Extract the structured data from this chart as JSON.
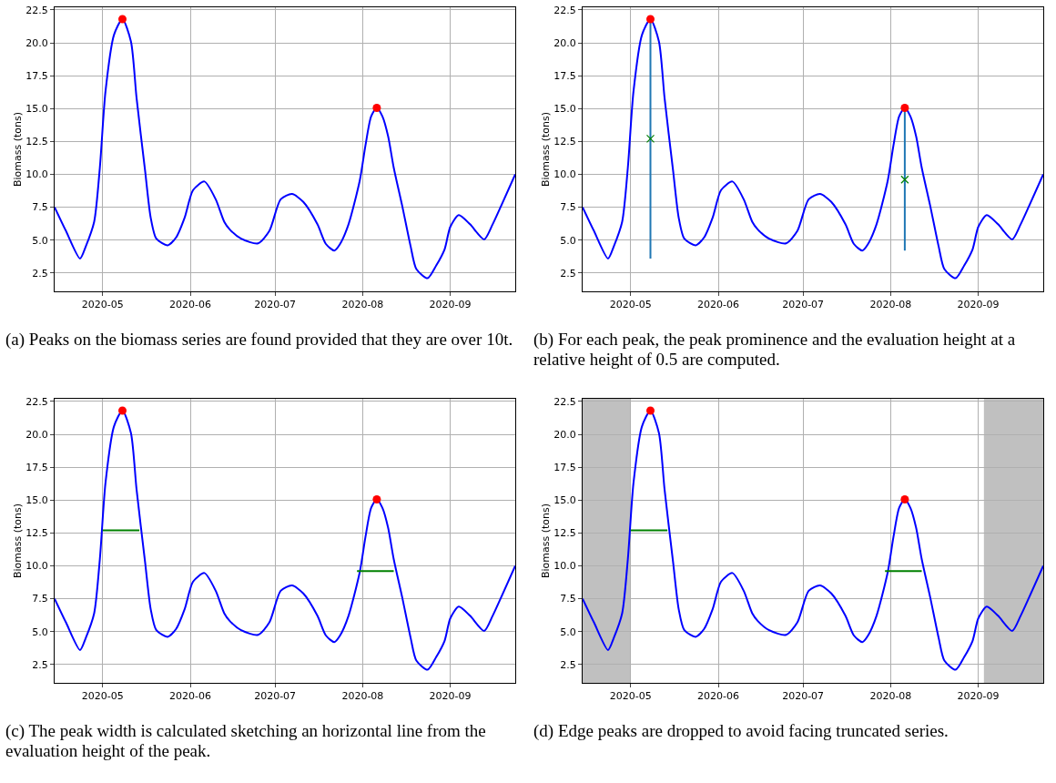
{
  "chart_data": [
    {
      "type": "line",
      "ylabel": "Biomass (tons)",
      "xlim": [
        "2020-04-14",
        "2020-09-24"
      ],
      "ylim": [
        1.1,
        22.7
      ],
      "xticks": [
        {
          "value": "2020-05-01",
          "label": "2020-05"
        },
        {
          "value": "2020-06-01",
          "label": "2020-06"
        },
        {
          "value": "2020-07-01",
          "label": "2020-07"
        },
        {
          "value": "2020-08-01",
          "label": "2020-08"
        },
        {
          "value": "2020-09-01",
          "label": "2020-09"
        }
      ],
      "yticks": [
        {
          "value": 2.5,
          "label": "2.5"
        },
        {
          "value": 5,
          "label": "5.0"
        },
        {
          "value": 7.5,
          "label": "7.5"
        },
        {
          "value": 10,
          "label": "10.0"
        },
        {
          "value": 12.5,
          "label": "12.5"
        },
        {
          "value": 15,
          "label": "15.0"
        },
        {
          "value": 17.5,
          "label": "17.5"
        },
        {
          "value": 20,
          "label": "20.0"
        },
        {
          "value": 22.5,
          "label": "22.5"
        }
      ],
      "grid": true,
      "annotations": [
        "(a) Peaks on the biomass series are found provided that they are over 10t."
      ],
      "series": [
        {
          "type": "line",
          "color": "#0000ff",
          "x": [
            "2020-04-14",
            "2020-04-18",
            "2020-04-23",
            "2020-04-25",
            "2020-04-28",
            "2020-04-30",
            "2020-05-02",
            "2020-05-05",
            "2020-05-08",
            "2020-05-11",
            "2020-05-13",
            "2020-05-16",
            "2020-05-18",
            "2020-05-20",
            "2020-05-24",
            "2020-05-27",
            "2020-05-30",
            "2020-06-02",
            "2020-06-06",
            "2020-06-10",
            "2020-06-13",
            "2020-06-15",
            "2020-06-19",
            "2020-06-25",
            "2020-06-29",
            "2020-07-03",
            "2020-07-07",
            "2020-07-11",
            "2020-07-16",
            "2020-07-19",
            "2020-07-22",
            "2020-07-24",
            "2020-07-27",
            "2020-07-31",
            "2020-08-02",
            "2020-08-04",
            "2020-08-06",
            "2020-08-08",
            "2020-08-10",
            "2020-08-12",
            "2020-08-15",
            "2020-08-18",
            "2020-08-20",
            "2020-08-24",
            "2020-08-27",
            "2020-08-30",
            "2020-09-01",
            "2020-09-04",
            "2020-09-08",
            "2020-09-13",
            "2020-09-16",
            "2020-09-19",
            "2020-09-24"
          ],
          "values": [
            7.5,
            5.7,
            3.6,
            4.5,
            6.4,
            10.5,
            16.3,
            20.6,
            21.8,
            20.1,
            15.8,
            10.3,
            6.7,
            5.1,
            4.6,
            5.2,
            6.7,
            8.8,
            9.45,
            8.1,
            6.4,
            5.8,
            5.1,
            4.75,
            5.7,
            8.1,
            8.5,
            7.9,
            6.2,
            4.7,
            4.2,
            4.7,
            6.2,
            9.55,
            12.2,
            14.4,
            15.05,
            14.4,
            12.9,
            10.5,
            7.6,
            4.5,
            2.8,
            2.1,
            3.05,
            4.3,
            6.0,
            6.9,
            6.2,
            5.05,
            6.2,
            7.6,
            10.0
          ]
        },
        {
          "type": "scatter",
          "color": "#ff0000",
          "marker": "circle",
          "x": [
            "2020-05-08",
            "2020-08-06"
          ],
          "values": [
            21.8,
            15.05
          ]
        }
      ]
    },
    {
      "type": "line",
      "ylabel": "Biomass (tons)",
      "xlim": [
        "2020-04-14",
        "2020-09-24"
      ],
      "ylim": [
        1.1,
        22.7
      ],
      "xticks": [
        {
          "value": "2020-05-01",
          "label": "2020-05"
        },
        {
          "value": "2020-06-01",
          "label": "2020-06"
        },
        {
          "value": "2020-07-01",
          "label": "2020-07"
        },
        {
          "value": "2020-08-01",
          "label": "2020-08"
        },
        {
          "value": "2020-09-01",
          "label": "2020-09"
        }
      ],
      "yticks": [
        {
          "value": 2.5,
          "label": "2.5"
        },
        {
          "value": 5,
          "label": "5.0"
        },
        {
          "value": 7.5,
          "label": "7.5"
        },
        {
          "value": 10,
          "label": "10.0"
        },
        {
          "value": 12.5,
          "label": "12.5"
        },
        {
          "value": 15,
          "label": "15.0"
        },
        {
          "value": 17.5,
          "label": "17.5"
        },
        {
          "value": 20,
          "label": "20.0"
        },
        {
          "value": 22.5,
          "label": "22.5"
        }
      ],
      "grid": true,
      "annotations": [
        "(b) For each peak, the peak prominence and the evaluation height at a relative height of 0.5 are computed."
      ],
      "series": [
        {
          "type": "line",
          "color": "#0000ff",
          "x": [
            "2020-04-14",
            "2020-04-18",
            "2020-04-23",
            "2020-04-25",
            "2020-04-28",
            "2020-04-30",
            "2020-05-02",
            "2020-05-05",
            "2020-05-08",
            "2020-05-11",
            "2020-05-13",
            "2020-05-16",
            "2020-05-18",
            "2020-05-20",
            "2020-05-24",
            "2020-05-27",
            "2020-05-30",
            "2020-06-02",
            "2020-06-06",
            "2020-06-10",
            "2020-06-13",
            "2020-06-15",
            "2020-06-19",
            "2020-06-25",
            "2020-06-29",
            "2020-07-03",
            "2020-07-07",
            "2020-07-11",
            "2020-07-16",
            "2020-07-19",
            "2020-07-22",
            "2020-07-24",
            "2020-07-27",
            "2020-07-31",
            "2020-08-02",
            "2020-08-04",
            "2020-08-06",
            "2020-08-08",
            "2020-08-10",
            "2020-08-12",
            "2020-08-15",
            "2020-08-18",
            "2020-08-20",
            "2020-08-24",
            "2020-08-27",
            "2020-08-30",
            "2020-09-01",
            "2020-09-04",
            "2020-09-08",
            "2020-09-13",
            "2020-09-16",
            "2020-09-19",
            "2020-09-24"
          ],
          "values": [
            7.5,
            5.7,
            3.6,
            4.5,
            6.4,
            10.5,
            16.3,
            20.6,
            21.8,
            20.1,
            15.8,
            10.3,
            6.7,
            5.1,
            4.6,
            5.2,
            6.7,
            8.8,
            9.45,
            8.1,
            6.4,
            5.8,
            5.1,
            4.75,
            5.7,
            8.1,
            8.5,
            7.9,
            6.2,
            4.7,
            4.2,
            4.7,
            6.2,
            9.55,
            12.2,
            14.4,
            15.05,
            14.4,
            12.9,
            10.5,
            7.6,
            4.5,
            2.8,
            2.1,
            3.05,
            4.3,
            6.0,
            6.9,
            6.2,
            5.05,
            6.2,
            7.6,
            10.0
          ]
        },
        {
          "type": "line",
          "color": "#1f77b4",
          "x": [
            "2020-05-08",
            "2020-05-08"
          ],
          "values": [
            3.6,
            21.8
          ]
        },
        {
          "type": "line",
          "color": "#1f77b4",
          "x": [
            "2020-08-06",
            "2020-08-06"
          ],
          "values": [
            4.2,
            15.05
          ]
        },
        {
          "type": "scatter",
          "color": "#ff0000",
          "marker": "circle",
          "x": [
            "2020-05-08",
            "2020-08-06"
          ],
          "values": [
            21.8,
            15.05
          ]
        },
        {
          "type": "scatter",
          "color": "#008000",
          "marker": "cross",
          "x": [
            "2020-05-08",
            "2020-08-06"
          ],
          "values": [
            12.7,
            9.6
          ]
        }
      ]
    },
    {
      "type": "line",
      "ylabel": "Biomass (tons)",
      "xlim": [
        "2020-04-14",
        "2020-09-24"
      ],
      "ylim": [
        1.1,
        22.7
      ],
      "xticks": [
        {
          "value": "2020-05-01",
          "label": "2020-05"
        },
        {
          "value": "2020-06-01",
          "label": "2020-06"
        },
        {
          "value": "2020-07-01",
          "label": "2020-07"
        },
        {
          "value": "2020-08-01",
          "label": "2020-08"
        },
        {
          "value": "2020-09-01",
          "label": "2020-09"
        }
      ],
      "yticks": [
        {
          "value": 2.5,
          "label": "2.5"
        },
        {
          "value": 5,
          "label": "5.0"
        },
        {
          "value": 7.5,
          "label": "7.5"
        },
        {
          "value": 10,
          "label": "10.0"
        },
        {
          "value": 12.5,
          "label": "12.5"
        },
        {
          "value": 15,
          "label": "15.0"
        },
        {
          "value": 17.5,
          "label": "17.5"
        },
        {
          "value": 20,
          "label": "20.0"
        },
        {
          "value": 22.5,
          "label": "22.5"
        }
      ],
      "grid": true,
      "annotations": [
        "(c) The peak width is calculated sketching an horizontal line from the evaluation height of the peak."
      ],
      "series": [
        {
          "type": "line",
          "color": "#0000ff",
          "x": [
            "2020-04-14",
            "2020-04-18",
            "2020-04-23",
            "2020-04-25",
            "2020-04-28",
            "2020-04-30",
            "2020-05-02",
            "2020-05-05",
            "2020-05-08",
            "2020-05-11",
            "2020-05-13",
            "2020-05-16",
            "2020-05-18",
            "2020-05-20",
            "2020-05-24",
            "2020-05-27",
            "2020-05-30",
            "2020-06-02",
            "2020-06-06",
            "2020-06-10",
            "2020-06-13",
            "2020-06-15",
            "2020-06-19",
            "2020-06-25",
            "2020-06-29",
            "2020-07-03",
            "2020-07-07",
            "2020-07-11",
            "2020-07-16",
            "2020-07-19",
            "2020-07-22",
            "2020-07-24",
            "2020-07-27",
            "2020-07-31",
            "2020-08-02",
            "2020-08-04",
            "2020-08-06",
            "2020-08-08",
            "2020-08-10",
            "2020-08-12",
            "2020-08-15",
            "2020-08-18",
            "2020-08-20",
            "2020-08-24",
            "2020-08-27",
            "2020-08-30",
            "2020-09-01",
            "2020-09-04",
            "2020-09-08",
            "2020-09-13",
            "2020-09-16",
            "2020-09-19",
            "2020-09-24"
          ],
          "values": [
            7.5,
            5.7,
            3.6,
            4.5,
            6.4,
            10.5,
            16.3,
            20.6,
            21.8,
            20.1,
            15.8,
            10.3,
            6.7,
            5.1,
            4.6,
            5.2,
            6.7,
            8.8,
            9.45,
            8.1,
            6.4,
            5.8,
            5.1,
            4.75,
            5.7,
            8.1,
            8.5,
            7.9,
            6.2,
            4.7,
            4.2,
            4.7,
            6.2,
            9.55,
            12.2,
            14.4,
            15.05,
            14.4,
            12.9,
            10.5,
            7.6,
            4.5,
            2.8,
            2.1,
            3.05,
            4.3,
            6.0,
            6.9,
            6.2,
            5.05,
            6.2,
            7.6,
            10.0
          ]
        },
        {
          "type": "line",
          "color": "#008000",
          "x": [
            "2020-05-01",
            "2020-05-14"
          ],
          "values": [
            12.7,
            12.7
          ]
        },
        {
          "type": "line",
          "color": "#008000",
          "x": [
            "2020-07-30",
            "2020-08-12"
          ],
          "values": [
            9.6,
            9.6
          ]
        },
        {
          "type": "scatter",
          "color": "#ff0000",
          "marker": "circle",
          "x": [
            "2020-05-08",
            "2020-08-06"
          ],
          "values": [
            21.8,
            15.05
          ]
        }
      ]
    },
    {
      "type": "line",
      "ylabel": "Biomass (tons)",
      "xlim": [
        "2020-04-14",
        "2020-09-24"
      ],
      "ylim": [
        1.1,
        22.7
      ],
      "xticks": [
        {
          "value": "2020-05-01",
          "label": "2020-05"
        },
        {
          "value": "2020-06-01",
          "label": "2020-06"
        },
        {
          "value": "2020-07-01",
          "label": "2020-07"
        },
        {
          "value": "2020-08-01",
          "label": "2020-08"
        },
        {
          "value": "2020-09-01",
          "label": "2020-09"
        }
      ],
      "yticks": [
        {
          "value": 2.5,
          "label": "2.5"
        },
        {
          "value": 5,
          "label": "5.0"
        },
        {
          "value": 7.5,
          "label": "7.5"
        },
        {
          "value": 10,
          "label": "10.0"
        },
        {
          "value": 12.5,
          "label": "12.5"
        },
        {
          "value": 15,
          "label": "15.0"
        },
        {
          "value": 17.5,
          "label": "17.5"
        },
        {
          "value": 20,
          "label": "20.0"
        },
        {
          "value": 22.5,
          "label": "22.5"
        }
      ],
      "grid": true,
      "annotations": [
        "(d) Edge peaks are dropped to avoid facing truncated series."
      ],
      "bands": [
        {
          "axis": "x",
          "from": "2020-04-14",
          "to": "2020-05-01",
          "color": "#c0c0c0"
        },
        {
          "axis": "x",
          "from": "2020-09-03",
          "to": "2020-09-24",
          "color": "#c0c0c0"
        }
      ],
      "series": [
        {
          "type": "line",
          "color": "#0000ff",
          "x": [
            "2020-04-14",
            "2020-04-18",
            "2020-04-23",
            "2020-04-25",
            "2020-04-28",
            "2020-04-30",
            "2020-05-02",
            "2020-05-05",
            "2020-05-08",
            "2020-05-11",
            "2020-05-13",
            "2020-05-16",
            "2020-05-18",
            "2020-05-20",
            "2020-05-24",
            "2020-05-27",
            "2020-05-30",
            "2020-06-02",
            "2020-06-06",
            "2020-06-10",
            "2020-06-13",
            "2020-06-15",
            "2020-06-19",
            "2020-06-25",
            "2020-06-29",
            "2020-07-03",
            "2020-07-07",
            "2020-07-11",
            "2020-07-16",
            "2020-07-19",
            "2020-07-22",
            "2020-07-24",
            "2020-07-27",
            "2020-07-31",
            "2020-08-02",
            "2020-08-04",
            "2020-08-06",
            "2020-08-08",
            "2020-08-10",
            "2020-08-12",
            "2020-08-15",
            "2020-08-18",
            "2020-08-20",
            "2020-08-24",
            "2020-08-27",
            "2020-08-30",
            "2020-09-01",
            "2020-09-04",
            "2020-09-08",
            "2020-09-13",
            "2020-09-16",
            "2020-09-19",
            "2020-09-24"
          ],
          "values": [
            7.5,
            5.7,
            3.6,
            4.5,
            6.4,
            10.5,
            16.3,
            20.6,
            21.8,
            20.1,
            15.8,
            10.3,
            6.7,
            5.1,
            4.6,
            5.2,
            6.7,
            8.8,
            9.45,
            8.1,
            6.4,
            5.8,
            5.1,
            4.75,
            5.7,
            8.1,
            8.5,
            7.9,
            6.2,
            4.7,
            4.2,
            4.7,
            6.2,
            9.55,
            12.2,
            14.4,
            15.05,
            14.4,
            12.9,
            10.5,
            7.6,
            4.5,
            2.8,
            2.1,
            3.05,
            4.3,
            6.0,
            6.9,
            6.2,
            5.05,
            6.2,
            7.6,
            10.0
          ]
        },
        {
          "type": "line",
          "color": "#008000",
          "x": [
            "2020-05-01",
            "2020-05-14"
          ],
          "values": [
            12.7,
            12.7
          ]
        },
        {
          "type": "line",
          "color": "#008000",
          "x": [
            "2020-07-30",
            "2020-08-12"
          ],
          "values": [
            9.6,
            9.6
          ]
        },
        {
          "type": "scatter",
          "color": "#ff0000",
          "marker": "circle",
          "x": [
            "2020-05-08",
            "2020-08-06"
          ],
          "values": [
            21.8,
            15.05
          ]
        }
      ]
    }
  ]
}
